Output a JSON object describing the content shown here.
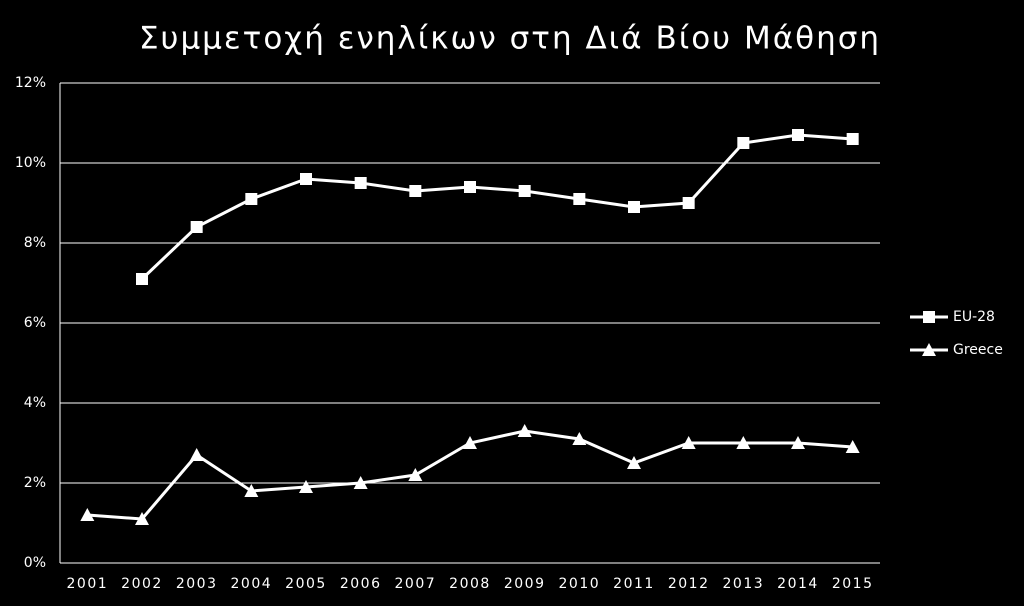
{
  "chart_data": {
    "type": "line",
    "title": "Συμμετοχή ενηλίκων στη Διά Βίου Μάθηση",
    "categories": [
      "2001",
      "2002",
      "2003",
      "2004",
      "2005",
      "2006",
      "2007",
      "2008",
      "2009",
      "2010",
      "2011",
      "2012",
      "2013",
      "2014",
      "2015"
    ],
    "series": [
      {
        "name": "EU-28",
        "color": "#ffffff",
        "marker": "square",
        "values": [
          null,
          7.1,
          8.4,
          9.1,
          9.6,
          9.5,
          9.3,
          9.4,
          9.3,
          9.1,
          8.9,
          9.0,
          10.5,
          10.7,
          10.6
        ]
      },
      {
        "name": "Greece",
        "color": "#ffffff",
        "marker": "triangle",
        "values": [
          1.2,
          1.1,
          2.7,
          1.8,
          1.9,
          2.0,
          2.2,
          3.0,
          3.3,
          3.1,
          2.5,
          3.0,
          3.0,
          3.0,
          2.9
        ]
      }
    ],
    "ylim": [
      0,
      12
    ],
    "yticks": [
      {
        "value": 0,
        "label": "0%"
      },
      {
        "value": 2,
        "label": "2%"
      },
      {
        "value": 4,
        "label": "4%"
      },
      {
        "value": 6,
        "label": "6%"
      },
      {
        "value": 8,
        "label": "8%"
      },
      {
        "value": 10,
        "label": "10%"
      },
      {
        "value": 12,
        "label": "12%"
      }
    ],
    "grid": true,
    "legend": "right"
  }
}
